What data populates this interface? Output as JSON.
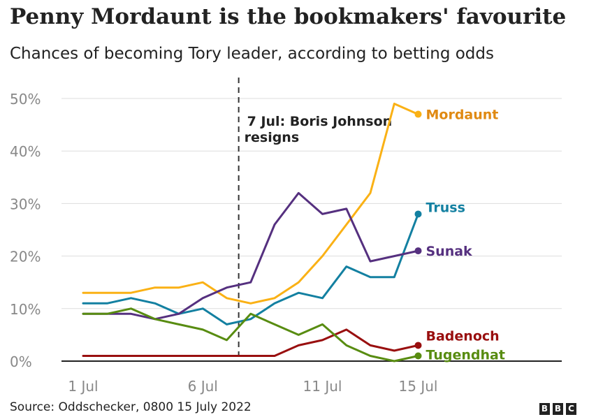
{
  "chart_data": {
    "type": "line",
    "title": "Penny Mordaunt is the bookmakers' favourite",
    "subtitle": "Chances of becoming Tory leader, according to betting odds",
    "xlabel": "",
    "ylabel": "",
    "x": [
      1,
      2,
      3,
      4,
      5,
      6,
      7,
      8,
      9,
      10,
      11,
      12,
      13,
      14,
      15
    ],
    "x_tick_values": [
      1,
      6,
      11,
      15
    ],
    "x_tick_labels": [
      "1 Jul",
      "6 Jul",
      "11 Jul",
      "15 Jul"
    ],
    "xlim": [
      1,
      21
    ],
    "ylim": [
      0,
      50
    ],
    "y_tick_values": [
      0,
      10,
      20,
      30,
      40,
      50
    ],
    "y_tick_labels": [
      "0%",
      "10%",
      "20%",
      "30%",
      "40%",
      "50%"
    ],
    "grid": "horizontal",
    "series": [
      {
        "name": "Mordaunt",
        "color": "#fab115",
        "label_color": "#e08a12",
        "x": [
          1,
          2,
          3,
          4,
          5,
          6,
          7,
          8,
          9,
          10,
          11,
          12,
          13,
          14,
          15
        ],
        "values": [
          13,
          13,
          13,
          14,
          14,
          15,
          12,
          11,
          12,
          15,
          20,
          26,
          32,
          49,
          47
        ]
      },
      {
        "name": "Truss",
        "color": "#1380a1",
        "label_color": "#1380a1",
        "x": [
          1,
          2,
          3,
          4,
          5,
          6,
          7,
          8,
          9,
          10,
          11,
          12,
          13,
          14,
          15
        ],
        "values": [
          11,
          11,
          12,
          11,
          9,
          10,
          7,
          8,
          11,
          13,
          12,
          18,
          16,
          16,
          28
        ]
      },
      {
        "name": "Sunak",
        "color": "#55307f",
        "label_color": "#55307f",
        "x": [
          1,
          2,
          3,
          4,
          5,
          6,
          7,
          8,
          9,
          10,
          11,
          12,
          13,
          14,
          15
        ],
        "values": [
          9,
          9,
          9,
          8,
          9,
          12,
          14,
          15,
          26,
          32,
          28,
          29,
          19,
          20,
          21
        ]
      },
      {
        "name": "Badenoch",
        "color": "#990f0f",
        "label_color": "#990f0f",
        "x": [
          1,
          2,
          3,
          4,
          5,
          6,
          7,
          8,
          9,
          10,
          11,
          12,
          13,
          14,
          15
        ],
        "values": [
          1,
          1,
          1,
          1,
          1,
          1,
          1,
          1,
          1,
          3,
          4,
          6,
          3,
          2,
          3
        ]
      },
      {
        "name": "Tugendhat",
        "color": "#588c11",
        "label_color": "#588c11",
        "x": [
          1,
          2,
          3,
          4,
          5,
          6,
          7,
          8,
          9,
          10,
          11,
          12,
          13,
          14,
          15
        ],
        "values": [
          9,
          9,
          10,
          8,
          7,
          6,
          4,
          9,
          7,
          5,
          7,
          3,
          1,
          0,
          1
        ]
      }
    ],
    "annotations": [
      {
        "x": 7.5,
        "line1": "7 Jul: Boris Johnson",
        "line2": "resigns"
      }
    ],
    "source": "Source: Oddschecker, 0800 15 July 2022"
  },
  "branding": {
    "logo_letters": [
      "B",
      "B",
      "C"
    ]
  }
}
